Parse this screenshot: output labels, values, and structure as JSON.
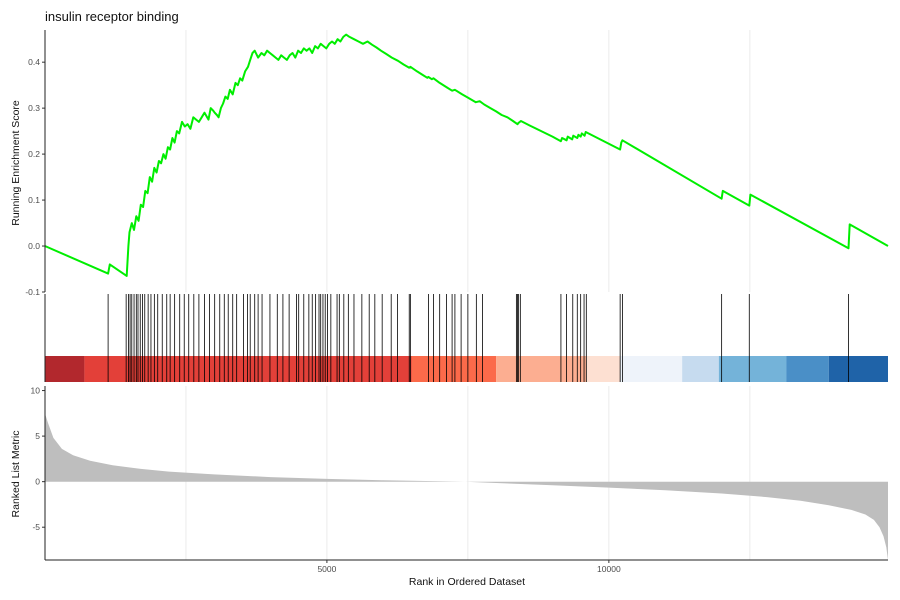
{
  "title": "insulin receptor binding",
  "chart_data": {
    "type": "line",
    "title": "insulin receptor binding",
    "xlabel": "Rank in Ordered Dataset",
    "x_range": [
      1,
      14950
    ],
    "x_ticks": [
      5000,
      10000
    ],
    "grid": true,
    "panels": {
      "running_score": {
        "ylabel": "Running Enrichment Score",
        "ylim": [
          -0.1,
          0.47
        ],
        "y_ticks": [
          -0.1,
          0.0,
          0.1,
          0.2,
          0.3,
          0.4
        ],
        "y_tick_labels": [
          "-0.1",
          "0.0",
          "0.1",
          "0.2",
          "0.3",
          "0.4"
        ],
        "line_color": "#00ee00",
        "series": [
          {
            "x": [
              0,
              1120,
              1150,
              1450,
              1480,
              1500,
              1540,
              1580,
              1620,
              1660,
              1700,
              1740,
              1780,
              1820,
              1860,
              1900,
              1940,
              1980,
              2020,
              2060,
              2100,
              2140,
              2180,
              2220,
              2260,
              2300,
              2340,
              2380,
              2430,
              2480,
              2530,
              2580,
              2630,
              2680,
              2730,
              2780,
              2830,
              2900,
              2940,
              2980,
              3010,
              3050,
              3080,
              3120,
              3160,
              3200,
              3240,
              3280,
              3330,
              3380,
              3420,
              3460,
              3500,
              3550,
              3600,
              3640,
              3680,
              3720,
              3780,
              3840,
              3890,
              3940,
              3990,
              4040,
              4090,
              4140,
              4190,
              4240,
              4290,
              4340,
              4390,
              4440,
              4490,
              4540,
              4590,
              4640,
              4690,
              4740,
              4790,
              4840,
              4890,
              4940,
              4990,
              5040,
              5090,
              5140,
              5190,
              5240,
              5290,
              5340,
              5400,
              5480,
              5560,
              5640,
              5720,
              5800,
              5880,
              5960,
              6050,
              6150,
              6260,
              6360,
              6460,
              6480,
              6600,
              6700,
              6780,
              6800,
              6860,
              6890,
              7000,
              7130,
              7220,
              7270,
              7400,
              7500,
              7640,
              7710,
              7790,
              7900,
              8000,
              8100,
              8200,
              8300,
              8380,
              8400,
              8420,
              8440,
              8600,
              8800,
              9000,
              9150,
              9170,
              9250,
              9270,
              9350,
              9370,
              9440,
              9460,
              9500,
              9520,
              9570,
              9590,
              10200,
              10220,
              10240,
              12000,
              12020,
              12490,
              12510,
              14250,
              14270,
              14950
            ],
            "y": [
              0,
              -0.06,
              -0.04,
              -0.065,
              0.0,
              0.03,
              0.05,
              0.035,
              0.065,
              0.055,
              0.09,
              0.085,
              0.12,
              0.115,
              0.15,
              0.14,
              0.17,
              0.16,
              0.185,
              0.18,
              0.2,
              0.19,
              0.215,
              0.21,
              0.235,
              0.225,
              0.25,
              0.245,
              0.27,
              0.26,
              0.265,
              0.255,
              0.28,
              0.275,
              0.27,
              0.28,
              0.29,
              0.275,
              0.3,
              0.295,
              0.29,
              0.285,
              0.28,
              0.3,
              0.31,
              0.325,
              0.32,
              0.34,
              0.33,
              0.355,
              0.35,
              0.365,
              0.36,
              0.38,
              0.39,
              0.405,
              0.42,
              0.425,
              0.41,
              0.42,
              0.415,
              0.425,
              0.42,
              0.415,
              0.41,
              0.405,
              0.415,
              0.41,
              0.405,
              0.415,
              0.42,
              0.41,
              0.425,
              0.42,
              0.43,
              0.425,
              0.43,
              0.42,
              0.435,
              0.43,
              0.44,
              0.435,
              0.43,
              0.44,
              0.445,
              0.44,
              0.45,
              0.445,
              0.455,
              0.46,
              0.455,
              0.45,
              0.445,
              0.44,
              0.445,
              0.438,
              0.432,
              0.425,
              0.418,
              0.41,
              0.403,
              0.395,
              0.388,
              0.39,
              0.38,
              0.372,
              0.366,
              0.368,
              0.363,
              0.365,
              0.355,
              0.345,
              0.338,
              0.34,
              0.33,
              0.323,
              0.313,
              0.315,
              0.308,
              0.3,
              0.293,
              0.285,
              0.28,
              0.272,
              0.265,
              0.268,
              0.27,
              0.272,
              0.262,
              0.25,
              0.238,
              0.228,
              0.235,
              0.23,
              0.238,
              0.232,
              0.24,
              0.235,
              0.242,
              0.238,
              0.245,
              0.24,
              0.248,
              0.21,
              0.225,
              0.23,
              0.103,
              0.12,
              0.088,
              0.112,
              -0.005,
              0.047,
              0.0
            ]
          }
        ]
      },
      "hit_positions": {
        "type": "barcode",
        "x": [
          1120,
          1440,
          1480,
          1510,
          1540,
          1580,
          1620,
          1650,
          1690,
          1730,
          1770,
          1830,
          1880,
          1940,
          2000,
          2080,
          2160,
          2220,
          2300,
          2390,
          2470,
          2550,
          2640,
          2730,
          2830,
          2920,
          3010,
          3100,
          3180,
          3250,
          3330,
          3400,
          3520,
          3590,
          3640,
          3720,
          3780,
          3850,
          3990,
          4120,
          4220,
          4330,
          4460,
          4500,
          4590,
          4680,
          4740,
          4800,
          4860,
          4890,
          4930,
          4970,
          5010,
          5070,
          5180,
          5220,
          5300,
          5380,
          5480,
          5620,
          5750,
          5850,
          5980,
          6140,
          6250,
          6460,
          6480,
          6800,
          6890,
          7000,
          7120,
          7220,
          7270,
          7380,
          7500,
          7650,
          7760,
          8360,
          8380,
          8400,
          8430,
          9150,
          9250,
          9360,
          9440,
          9500,
          9560,
          9600,
          10200,
          10240,
          12000,
          12490,
          14250
        ]
      },
      "rank_color_bar": {
        "type": "heatmap",
        "segments": [
          {
            "end": 700,
            "color": "#b2282d"
          },
          {
            "end": 6500,
            "color": "#e34039"
          },
          {
            "end": 8000,
            "color": "#fb6a4a"
          },
          {
            "end": 9600,
            "color": "#fcae91"
          },
          {
            "end": 10200,
            "color": "#fde0d2"
          },
          {
            "end": 11300,
            "color": "#eef3fa"
          },
          {
            "end": 11950,
            "color": "#c6dbef"
          },
          {
            "end": 13150,
            "color": "#74b3d9"
          },
          {
            "end": 13900,
            "color": "#4a8fc7"
          },
          {
            "end": 14950,
            "color": "#1f63a8"
          }
        ]
      },
      "ranked_metric": {
        "type": "area",
        "ylabel": "Ranked List Metric",
        "ylim": [
          -8.6,
          10.5
        ],
        "y_ticks": [
          -5,
          0,
          5,
          10
        ],
        "y_tick_labels": [
          "-5",
          "0",
          "5",
          "10"
        ],
        "fill_color": "#bebebe",
        "x": [
          0,
          50,
          150,
          300,
          500,
          800,
          1200,
          1700,
          2200,
          3000,
          4000,
          5000,
          6000,
          7000,
          7450,
          8000,
          9000,
          10000,
          11000,
          12000,
          12800,
          13400,
          13900,
          14300,
          14550,
          14700,
          14800,
          14870,
          14920,
          14950
        ],
        "y": [
          7.5,
          6.5,
          4.8,
          3.6,
          2.9,
          2.3,
          1.8,
          1.4,
          1.1,
          0.8,
          0.5,
          0.3,
          0.15,
          0.05,
          0.0,
          -0.15,
          -0.4,
          -0.65,
          -0.95,
          -1.3,
          -1.7,
          -2.1,
          -2.6,
          -3.1,
          -3.6,
          -4.2,
          -5.0,
          -6.0,
          -7.2,
          -8.6
        ]
      }
    }
  }
}
